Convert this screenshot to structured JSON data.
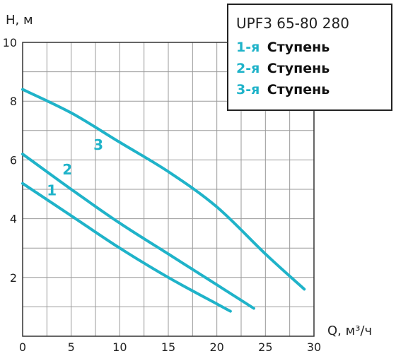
{
  "colors": {
    "curve": "#1fb3c9",
    "grid": "#9a9a9a",
    "axis": "#333333",
    "legend_border": "#222222"
  },
  "chart_data": {
    "type": "line",
    "title": "UPF3 65-80 280",
    "xlabel": "Q, м³/ч",
    "ylabel": "H, м",
    "xlim": [
      0,
      30
    ],
    "ylim": [
      0,
      10
    ],
    "x_ticks": [
      "0",
      "5",
      "10",
      "15",
      "20",
      "25",
      "30"
    ],
    "y_ticks": [
      "2",
      "4",
      "6",
      "8",
      "10"
    ],
    "grid": true,
    "legend": {
      "placement": "top-right",
      "entries": [
        {
          "num": "1-я",
          "word": "Ступень"
        },
        {
          "num": "2-я",
          "word": "Ступень"
        },
        {
          "num": "3-я",
          "word": "Ступень"
        }
      ]
    },
    "series": [
      {
        "label": "1",
        "points": [
          [
            0,
            5.2
          ],
          [
            5,
            4.1
          ],
          [
            10,
            3.0
          ],
          [
            15,
            2.0
          ],
          [
            20,
            1.1
          ],
          [
            21.4,
            0.85
          ]
        ],
        "label_at": [
          3,
          4.8
        ]
      },
      {
        "label": "2",
        "points": [
          [
            0,
            6.2
          ],
          [
            5,
            5.0
          ],
          [
            10,
            3.85
          ],
          [
            15,
            2.8
          ],
          [
            20,
            1.75
          ],
          [
            23.8,
            0.95
          ]
        ],
        "label_at": [
          4.6,
          5.5
        ]
      },
      {
        "label": "3",
        "points": [
          [
            0,
            8.4
          ],
          [
            5,
            7.6
          ],
          [
            10,
            6.6
          ],
          [
            15,
            5.6
          ],
          [
            20,
            4.4
          ],
          [
            25,
            2.8
          ],
          [
            29,
            1.6
          ]
        ],
        "label_at": [
          7.8,
          6.35
        ]
      }
    ]
  }
}
